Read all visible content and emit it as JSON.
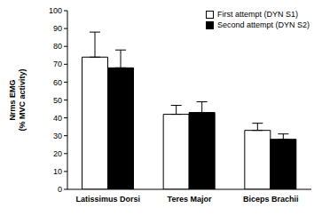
{
  "chart_data": {
    "type": "bar",
    "y_label": "Nrms EMG\n(% MVC activity)",
    "categories": [
      "Latissimus Dorsi",
      "Teres Major",
      "Biceps Brachii"
    ],
    "series": [
      {
        "name": "First attempt (DYN S1)",
        "color": "#ffffff",
        "values": [
          74,
          42,
          33
        ],
        "errors": [
          14,
          5,
          4
        ]
      },
      {
        "name": "Second attempt (DYN S2)",
        "color": "#000000",
        "values": [
          68,
          43,
          28
        ],
        "errors": [
          10,
          6,
          3
        ]
      }
    ],
    "ylim": [
      0,
      100
    ],
    "yticks": [
      0,
      10,
      20,
      30,
      40,
      50,
      60,
      70,
      80,
      90,
      100
    ],
    "grid": false,
    "legend": "upper right"
  }
}
